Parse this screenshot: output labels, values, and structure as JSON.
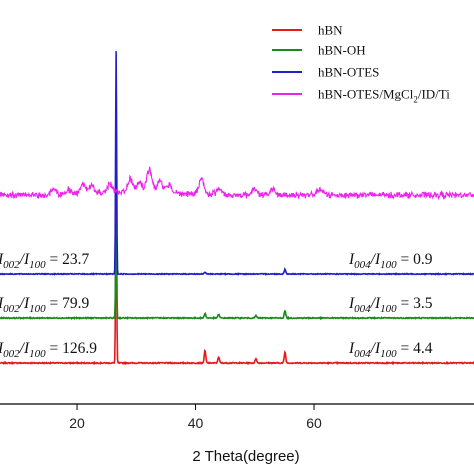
{
  "chart_data": {
    "type": "line",
    "xlabel": "2 Theta(degree)",
    "ylabel": "",
    "xlim": [
      7,
      87
    ],
    "xticks": [
      20,
      40,
      60
    ],
    "grid": false,
    "legend_position": "top-right",
    "series": [
      {
        "name": "hBN",
        "color": "#e41a1c",
        "baseline_y_px_note": "",
        "offset": 0,
        "peaks": [
          {
            "x": 26.6,
            "height": 126.9
          },
          {
            "x": 41.6,
            "height": 8
          },
          {
            "x": 43.9,
            "height": 4
          },
          {
            "x": 50.2,
            "height": 3
          },
          {
            "x": 55.1,
            "height": 7
          }
        ]
      },
      {
        "name": "hBN-OH",
        "color": "#1a8a1a",
        "offset": 1,
        "peaks": [
          {
            "x": 26.6,
            "height": 79.9
          },
          {
            "x": 41.6,
            "height": 4
          },
          {
            "x": 43.9,
            "height": 3
          },
          {
            "x": 50.2,
            "height": 2
          },
          {
            "x": 55.1,
            "height": 6
          }
        ]
      },
      {
        "name": "hBN-OTES",
        "color": "#1f1fcc",
        "offset": 2,
        "peaks": [
          {
            "x": 26.6,
            "height": 230
          },
          {
            "x": 41.6,
            "height": 2
          },
          {
            "x": 55.1,
            "height": 5
          }
        ]
      },
      {
        "name": "hBN-OTES/MgCl",
        "color": "#ee22ee",
        "offset": 3,
        "peaks": []
      }
    ],
    "legend": [
      {
        "label": "hBN",
        "color": "#e41a1c"
      },
      {
        "label": "hBN-OH",
        "color": "#1a8a1a"
      },
      {
        "label": "hBN-OTES",
        "color": "#1f1fcc"
      },
      {
        "label": "hBN-OTES/MgCl",
        "sub": "2",
        "rest": "/ID/Ti",
        "color": "#ee22ee"
      }
    ],
    "annotations": {
      "left": [
        {
          "pre": "I",
          "sub1": "002",
          "mid": "/I",
          "sub2": "100",
          "val": " = 23.7"
        },
        {
          "pre": "I",
          "sub1": "002",
          "mid": "/I",
          "sub2": "100",
          "val": " = 79.9"
        },
        {
          "pre": "I",
          "sub1": "002",
          "mid": "/I",
          "sub2": "100",
          "val": " = 126.9"
        }
      ],
      "right": [
        {
          "pre": "I",
          "sub1": "004",
          "mid": "/I",
          "sub2": "100",
          "val": " = 0.9"
        },
        {
          "pre": "I",
          "sub1": "004",
          "mid": "/I",
          "sub2": "100",
          "val": " = 3.5"
        },
        {
          "pre": "I",
          "sub1": "004",
          "mid": "/I",
          "sub2": "100",
          "val": " = 4.4"
        }
      ]
    }
  }
}
